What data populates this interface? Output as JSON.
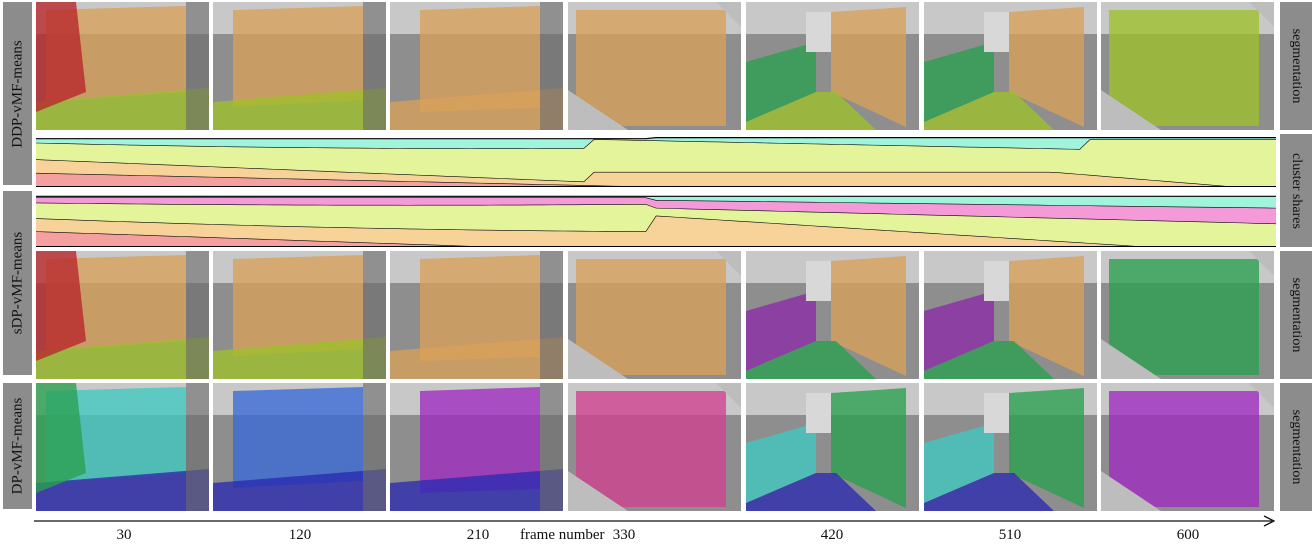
{
  "rows": [
    {
      "label": "DDP-vMF-means",
      "right_label": "segmentation"
    },
    {
      "label": "sDP-vMF-means",
      "right_label": "segmentation"
    },
    {
      "label": "DP-vMF-means",
      "right_label": "segmentation"
    }
  ],
  "strip_label": "cluster shares",
  "axis": {
    "title": "frame number",
    "ticks": [
      "30",
      "120",
      "210",
      "330",
      "420",
      "510",
      "600"
    ]
  },
  "palettes": {
    "ddp": [
      "#b8252a",
      "#d9a05a",
      "#9ec02a",
      "#2aa050",
      "#38b8c0"
    ],
    "sdp": [
      "#b8252a",
      "#d9a05a",
      "#9ec02a",
      "#2aa050",
      "#8a2aa8",
      "#2a40c0",
      "#38b8c0"
    ],
    "dp": [
      "#2aa050",
      "#40c8c0",
      "#2a2ab0",
      "#3a6ad8",
      "#a02ac0",
      "#d04090",
      "#9040d0"
    ],
    "shares": [
      "#f4a0a0",
      "#f7d39a",
      "#e4f49a",
      "#a0f4dc",
      "#f49ad8"
    ]
  }
}
